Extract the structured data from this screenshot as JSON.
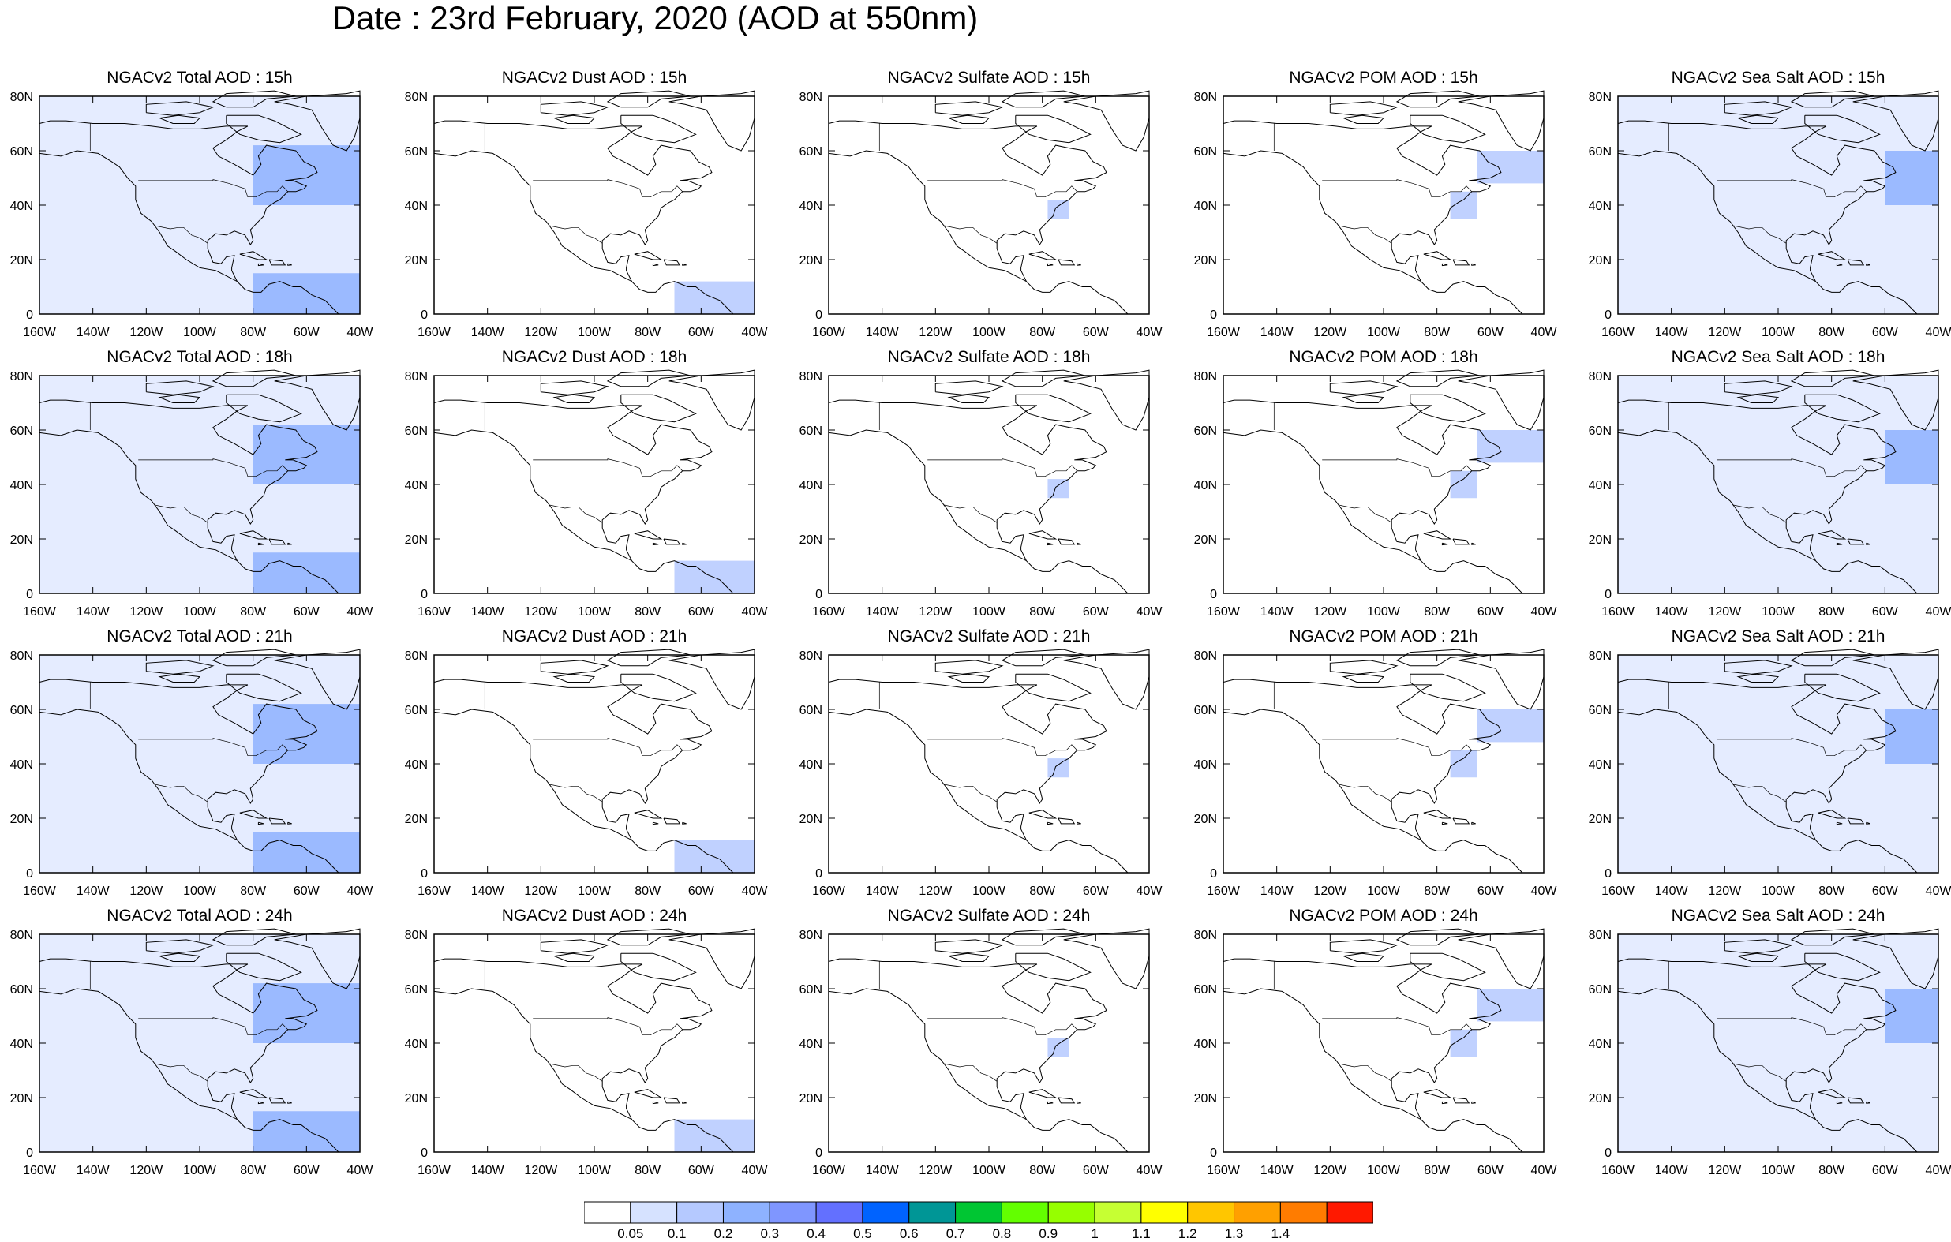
{
  "title": "Date : 23rd February, 2020 (AOD at 550nm)",
  "panel_titles": [
    [
      "NGACv2 Total AOD : 15h",
      "NGACv2 Dust AOD : 15h",
      "NGACv2 Sulfate AOD : 15h",
      "NGACv2 POM AOD : 15h",
      "NGACv2 Sea Salt AOD : 15h"
    ],
    [
      "NGACv2 Total AOD : 18h",
      "NGACv2 Dust AOD : 18h",
      "NGACv2 Sulfate AOD : 18h",
      "NGACv2 POM AOD : 18h",
      "NGACv2 Sea Salt AOD : 18h"
    ],
    [
      "NGACv2 Total AOD : 21h",
      "NGACv2 Dust AOD : 21h",
      "NGACv2 Sulfate AOD : 21h",
      "NGACv2 POM AOD : 21h",
      "NGACv2 Sea Salt AOD : 21h"
    ],
    [
      "NGACv2 Total AOD : 24h",
      "NGACv2 Dust AOD : 24h",
      "NGACv2 Sulfate AOD : 24h",
      "NGACv2 POM AOD : 24h",
      "NGACv2 Sea Salt  AOD : 24h"
    ]
  ],
  "chart_data": {
    "type": "heatmap",
    "map_projection": "cylindrical equidistant",
    "region": "North America",
    "x_axis": {
      "ticks": [
        -160,
        -140,
        -120,
        -100,
        -80,
        -60,
        -40
      ],
      "tick_labels": [
        "160W",
        "140W",
        "120W",
        "100W",
        "80W",
        "60W",
        "40W"
      ],
      "range": [
        -160,
        -40
      ]
    },
    "y_axis": {
      "ticks": [
        0,
        20,
        40,
        60,
        80
      ],
      "tick_labels": [
        "0",
        "20N",
        "40N",
        "60N",
        "80N"
      ],
      "range": [
        0,
        80
      ]
    },
    "colorbar": {
      "labels": [
        "0.05",
        "0.1",
        "0.2",
        "0.3",
        "0.4",
        "0.5",
        "0.6",
        "0.7",
        "0.8",
        "0.9",
        "1",
        "1.1",
        "1.2",
        "1.3",
        "1.4"
      ],
      "colors": [
        "#ffffff",
        "#d6e2ff",
        "#b5c9ff",
        "#8eb2ff",
        "#7f96ff",
        "#6370ff",
        "#0063ff",
        "#009696",
        "#00c633",
        "#63ff00",
        "#96ff00",
        "#c6ff33",
        "#ffff00",
        "#ffc600",
        "#ffa000",
        "#ff7c00",
        "#ff1900"
      ]
    },
    "row_times": [
      "15h",
      "18h",
      "21h",
      "24h"
    ],
    "column_species": [
      "Total",
      "Dust",
      "Sulfate",
      "POM",
      "Sea Salt"
    ],
    "panels": {
      "Total": [
        {
          "lon": [
            -160,
            -40
          ],
          "lat": [
            0,
            80
          ],
          "level": 1,
          "note": "broad light AOD over Pacific, Canada and Atlantic"
        },
        {
          "lon": [
            -80,
            -40
          ],
          "lat": [
            40,
            62
          ],
          "level": 2
        },
        {
          "lon": [
            -80,
            -40
          ],
          "lat": [
            0,
            15
          ],
          "level": 2
        }
      ],
      "Dust": [
        {
          "lon": [
            -70,
            -40
          ],
          "lat": [
            0,
            12
          ],
          "level": 1
        }
      ],
      "Sulfate": [
        {
          "lon": [
            -78,
            -70
          ],
          "lat": [
            35,
            42
          ],
          "level": 1
        }
      ],
      "POM": [
        {
          "lon": [
            -65,
            -40
          ],
          "lat": [
            48,
            60
          ],
          "level": 1
        },
        {
          "lon": [
            -75,
            -65
          ],
          "lat": [
            35,
            45
          ],
          "level": 1
        }
      ],
      "Sea Salt": [
        {
          "lon": [
            -160,
            -40
          ],
          "lat": [
            0,
            80
          ],
          "level": 1,
          "note": "scattered light AOD over oceans"
        },
        {
          "lon": [
            -60,
            -40
          ],
          "lat": [
            40,
            60
          ],
          "level": 2
        }
      ]
    }
  }
}
